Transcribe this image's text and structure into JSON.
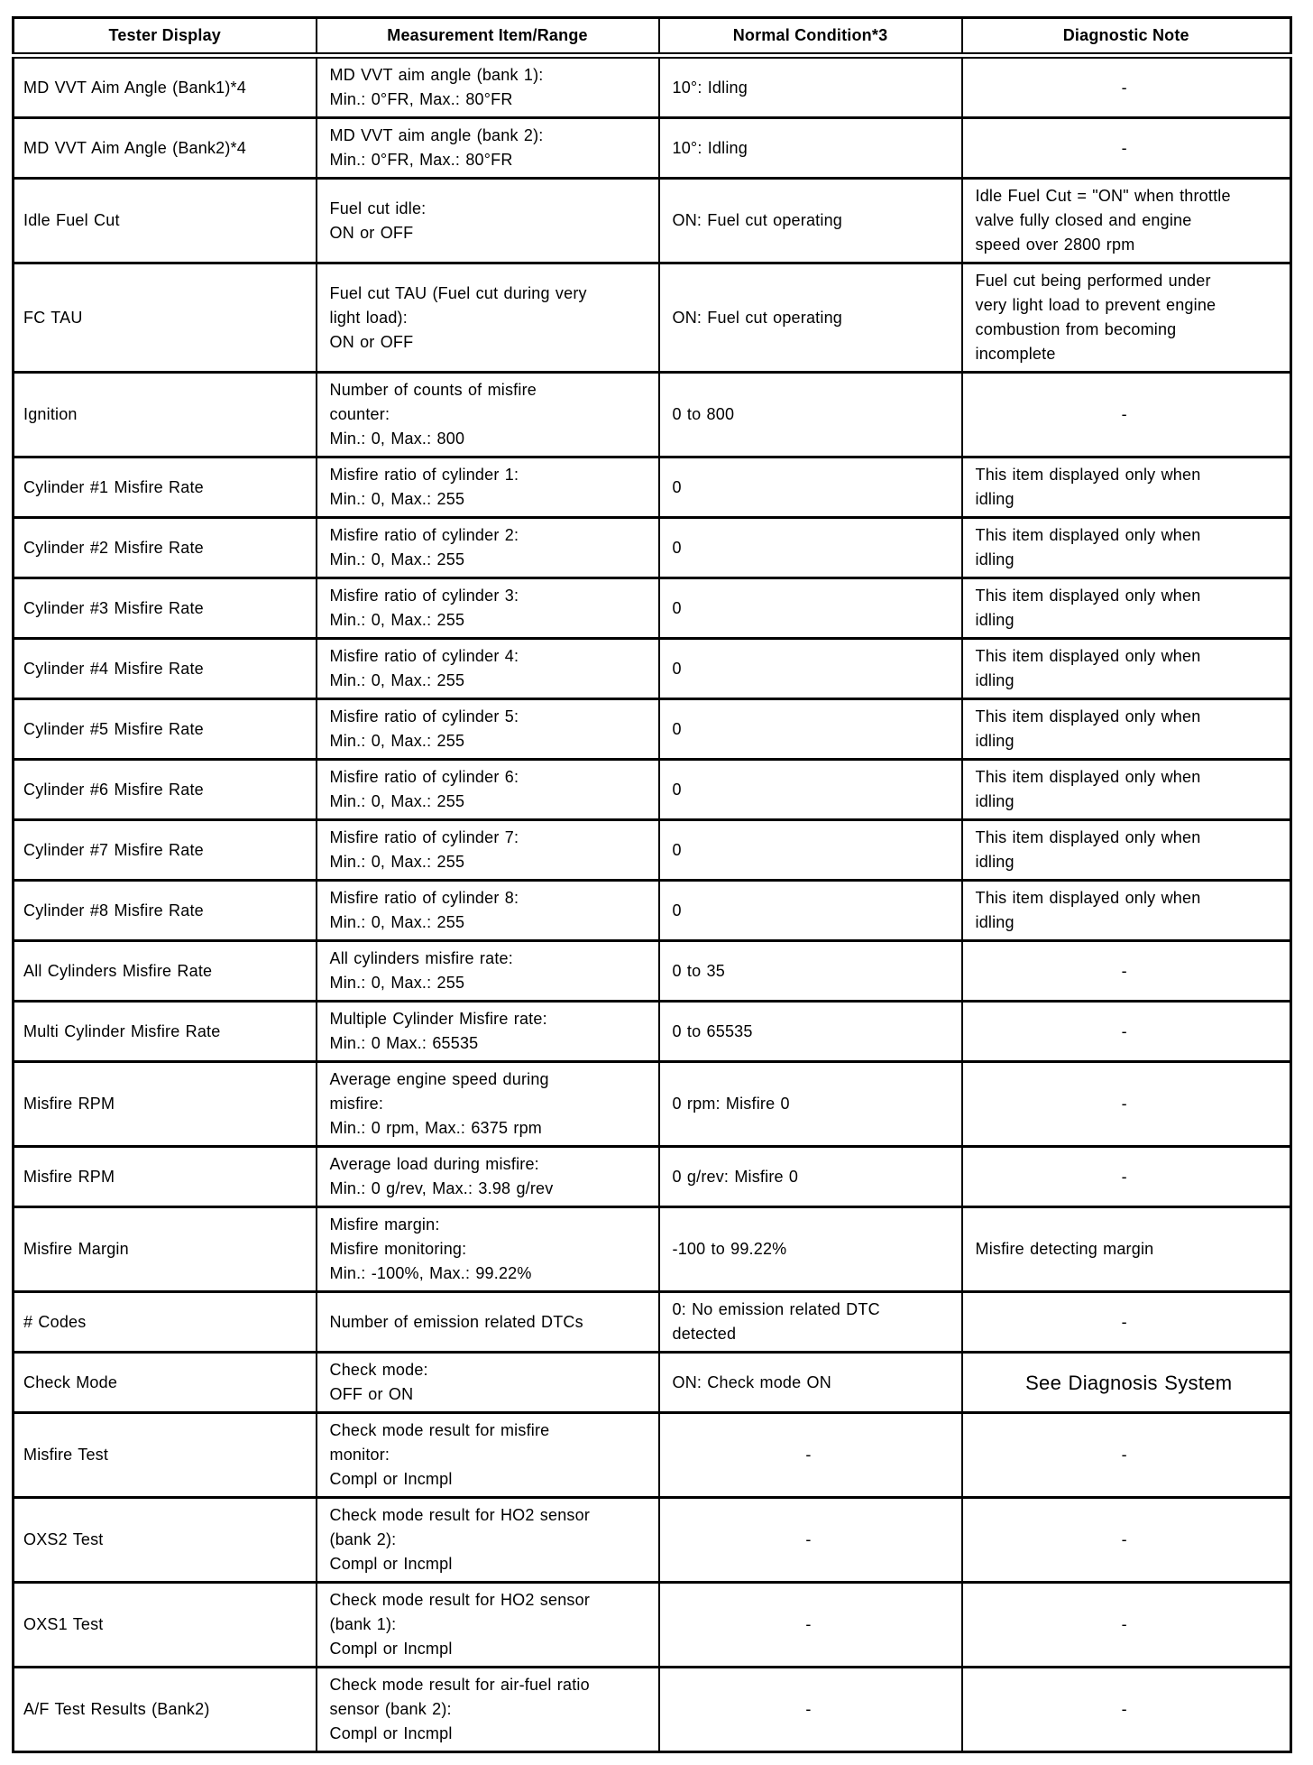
{
  "table": {
    "headers": [
      "Tester Display",
      "Measurement Item/Range",
      "Normal Condition*3",
      "Diagnostic Note"
    ],
    "rows": [
      {
        "tester": "MD VVT Aim Angle (Bank1)*4",
        "item": "MD VVT aim angle (bank 1):\nMin.: 0°FR, Max.: 80°FR",
        "normal": "10°: Idling",
        "note": "-"
      },
      {
        "tester": "MD VVT Aim Angle (Bank2)*4",
        "item": "MD VVT aim angle (bank 2):\nMin.: 0°FR, Max.: 80°FR",
        "normal": "10°: Idling",
        "note": "-"
      },
      {
        "tester": "Idle Fuel Cut",
        "item": "Fuel cut idle:\nON or OFF",
        "normal": "ON: Fuel cut operating",
        "note": "Idle Fuel Cut = \"ON\" when throttle\nvalve fully closed and engine\nspeed over 2800 rpm"
      },
      {
        "tester": "FC TAU",
        "item": "Fuel cut TAU (Fuel cut during very\nlight load):\nON or OFF",
        "normal": "ON: Fuel cut operating",
        "note": "Fuel cut being performed under\nvery light load to prevent engine\ncombustion from becoming\nincomplete"
      },
      {
        "tester": "Ignition",
        "item": "Number of counts of misfire\ncounter:\nMin.: 0, Max.: 800",
        "normal": "0 to 800",
        "note": "-"
      },
      {
        "tester": "Cylinder #1 Misfire Rate",
        "item": "Misfire ratio of cylinder 1:\nMin.: 0, Max.: 255",
        "normal": "0",
        "note": "This item displayed only when\nidling"
      },
      {
        "tester": "Cylinder #2 Misfire Rate",
        "item": "Misfire ratio of cylinder 2:\nMin.: 0, Max.: 255",
        "normal": "0",
        "note": "This item displayed only when\nidling"
      },
      {
        "tester": "Cylinder #3 Misfire Rate",
        "item": "Misfire ratio of cylinder 3:\nMin.: 0, Max.: 255",
        "normal": "0",
        "note": "This item displayed only when\nidling"
      },
      {
        "tester": "Cylinder #4 Misfire Rate",
        "item": "Misfire ratio of cylinder 4:\nMin.: 0, Max.: 255",
        "normal": "0",
        "note": "This item displayed only when\nidling"
      },
      {
        "tester": "Cylinder #5 Misfire Rate",
        "item": "Misfire ratio of cylinder 5:\nMin.: 0, Max.: 255",
        "normal": "0",
        "note": "This item displayed only when\nidling"
      },
      {
        "tester": "Cylinder #6 Misfire Rate",
        "item": "Misfire ratio of cylinder 6:\nMin.: 0, Max.: 255",
        "normal": "0",
        "note": "This item displayed only when\nidling"
      },
      {
        "tester": "Cylinder #7 Misfire Rate",
        "item": "Misfire ratio of cylinder 7:\nMin.: 0, Max.: 255",
        "normal": "0",
        "note": "This item displayed only when\nidling"
      },
      {
        "tester": "Cylinder #8 Misfire Rate",
        "item": "Misfire ratio of cylinder 8:\nMin.: 0, Max.: 255",
        "normal": "0",
        "note": "This item displayed only when\nidling"
      },
      {
        "tester": "All Cylinders Misfire Rate",
        "item": "All cylinders misfire rate:\nMin.: 0, Max.: 255",
        "normal": "0 to 35",
        "note": "-"
      },
      {
        "tester": "Multi Cylinder Misfire Rate",
        "item": "Multiple Cylinder Misfire rate:\nMin.: 0 Max.: 65535",
        "normal": "0 to 65535",
        "note": "-"
      },
      {
        "tester": "Misfire RPM",
        "item": "Average engine speed during\nmisfire:\nMin.: 0 rpm, Max.: 6375 rpm",
        "normal": "0 rpm: Misfire 0",
        "note": "-"
      },
      {
        "tester": "Misfire RPM",
        "item": "Average load during misfire:\nMin.: 0 g/rev, Max.: 3.98 g/rev",
        "normal": "0 g/rev: Misfire 0",
        "note": "-"
      },
      {
        "tester": "Misfire Margin",
        "item": "Misfire margin:\nMisfire monitoring:\nMin.: -100%, Max.: 99.22%",
        "normal": "-100 to 99.22%",
        "note": "Misfire detecting margin"
      },
      {
        "tester": "# Codes",
        "item": "Number of emission related DTCs",
        "normal": "0: No emission related DTC\ndetected",
        "note": "-"
      },
      {
        "tester": "Check Mode",
        "item": "Check mode:\nOFF or ON",
        "normal": "ON: Check mode ON",
        "note": "See Diagnosis System",
        "note_style": "large"
      },
      {
        "tester": "Misfire Test",
        "item": "Check mode result for misfire\nmonitor:\nCompl or Incmpl",
        "normal": "-",
        "note": "-"
      },
      {
        "tester": "OXS2 Test",
        "item": "Check mode result for HO2 sensor\n(bank 2):\nCompl or Incmpl",
        "normal": "-",
        "note": "-"
      },
      {
        "tester": "OXS1 Test",
        "item": "Check mode result for HO2 sensor\n(bank 1):\nCompl or Incmpl",
        "normal": "-",
        "note": "-"
      },
      {
        "tester": "A/F Test Results (Bank2)",
        "item": "Check mode result for air-fuel ratio\nsensor (bank 2):\nCompl or Incmpl",
        "normal": "-",
        "note": "-"
      }
    ]
  }
}
